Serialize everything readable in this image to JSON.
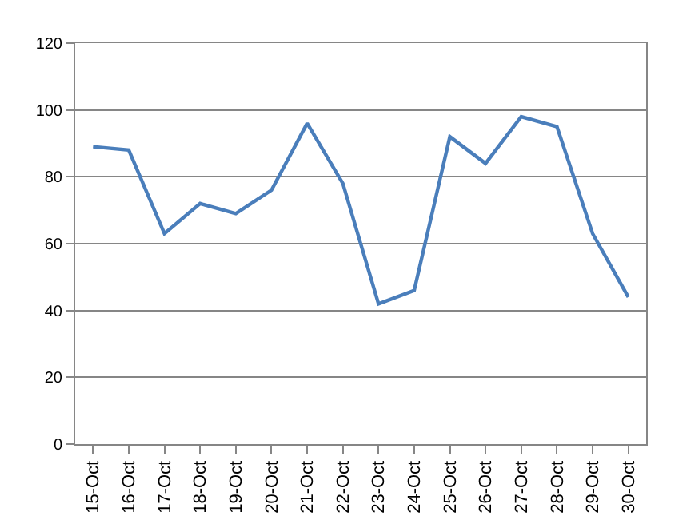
{
  "chart_data": {
    "type": "line",
    "categories": [
      "15-Oct",
      "16-Oct",
      "17-Oct",
      "18-Oct",
      "19-Oct",
      "20-Oct",
      "21-Oct",
      "22-Oct",
      "23-Oct",
      "24-Oct",
      "25-Oct",
      "26-Oct",
      "27-Oct",
      "28-Oct",
      "29-Oct",
      "30-Oct"
    ],
    "series": [
      {
        "color": "#4a7ebb",
        "values": [
          89,
          88,
          63,
          72,
          69,
          76,
          96,
          78,
          42,
          46,
          92,
          84,
          98,
          95,
          63,
          44
        ]
      }
    ],
    "ylim": [
      0,
      120
    ],
    "yticks": [
      0,
      20,
      40,
      60,
      80,
      100,
      120
    ],
    "grid": "y",
    "marker": "none",
    "line_style": "solid"
  }
}
